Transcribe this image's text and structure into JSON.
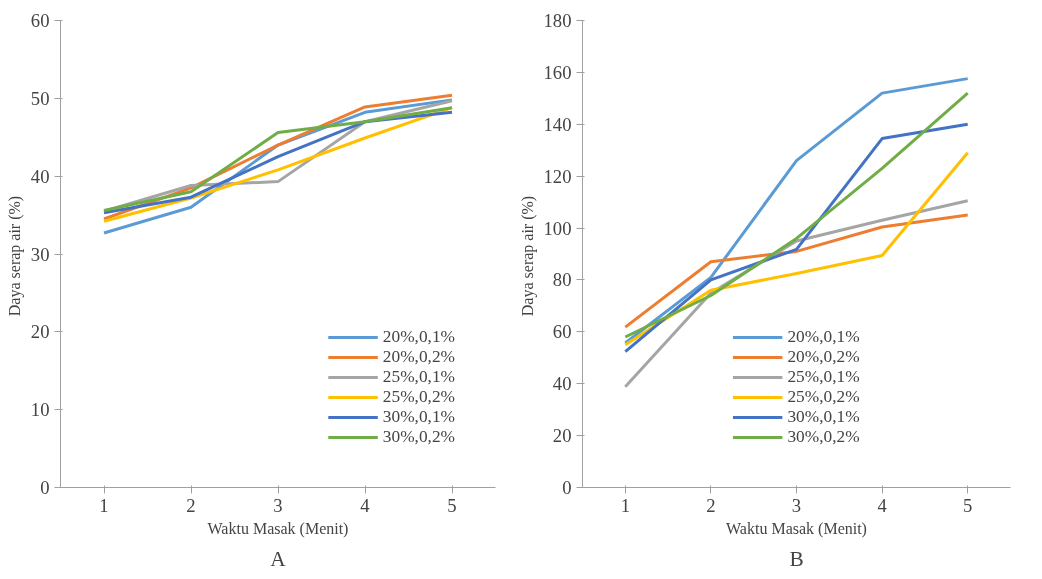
{
  "chart_data": [
    {
      "type": "line",
      "xlabel": "Waktu Masak (Menit)",
      "ylabel": "Daya serap air  (%)",
      "categories": [
        "1",
        "2",
        "3",
        "4",
        "5"
      ],
      "ylim": [
        0,
        60
      ],
      "yticks": [
        0,
        10,
        20,
        30,
        40,
        50,
        60
      ],
      "grid": false,
      "legend": "bottom right",
      "annotations": [
        "A"
      ],
      "series": [
        {
          "name": "20%,0,1%",
          "color": "#5b9bd5",
          "values": [
            32.7,
            36,
            44,
            48.2,
            49.8
          ]
        },
        {
          "name": "20%,0,2%",
          "color": "#ed7d31",
          "values": [
            34.5,
            38.5,
            44,
            48.9,
            50.4
          ]
        },
        {
          "name": "25%,0,1%",
          "color": "#a5a5a5",
          "values": [
            35.5,
            38.8,
            39.3,
            47,
            49.7
          ]
        },
        {
          "name": "25%,0,2%",
          "color": "#ffc000",
          "values": [
            34.2,
            37.2,
            40.8,
            44.9,
            48.8
          ]
        },
        {
          "name": "30%,0,1%",
          "color": "#4472c4",
          "values": [
            35.3,
            37.3,
            42.5,
            47,
            48.2
          ]
        },
        {
          "name": "30%,0,2%",
          "color": "#70ad47",
          "values": [
            35.6,
            38,
            45.6,
            47,
            48.8
          ]
        }
      ]
    },
    {
      "type": "line",
      "xlabel": "Waktu Masak (Menit)",
      "ylabel": "Daya serap air  (%)",
      "categories": [
        "1",
        "2",
        "3",
        "4",
        "5"
      ],
      "ylim": [
        0,
        180
      ],
      "yticks": [
        0,
        20,
        40,
        60,
        80,
        100,
        120,
        140,
        160,
        180
      ],
      "grid": false,
      "legend": "bottom",
      "annotations": [
        "B"
      ],
      "series": [
        {
          "name": "20%,0,1%",
          "color": "#5b9bd5",
          "values": [
            55.7,
            81,
            126,
            152,
            157.6
          ]
        },
        {
          "name": "20%,0,2%",
          "color": "#ed7d31",
          "values": [
            61.8,
            87,
            91,
            100.4,
            105
          ]
        },
        {
          "name": "25%,0,1%",
          "color": "#a5a5a5",
          "values": [
            38.8,
            75,
            95,
            103,
            110.5
          ]
        },
        {
          "name": "25%,0,2%",
          "color": "#ffc000",
          "values": [
            55,
            76,
            82.5,
            89.4,
            129
          ]
        },
        {
          "name": "30%,0,1%",
          "color": "#4472c4",
          "values": [
            52.4,
            80,
            91.8,
            134.5,
            140
          ]
        },
        {
          "name": "30%,0,2%",
          "color": "#70ad47",
          "values": [
            58,
            74,
            96,
            123,
            152
          ]
        }
      ]
    }
  ]
}
